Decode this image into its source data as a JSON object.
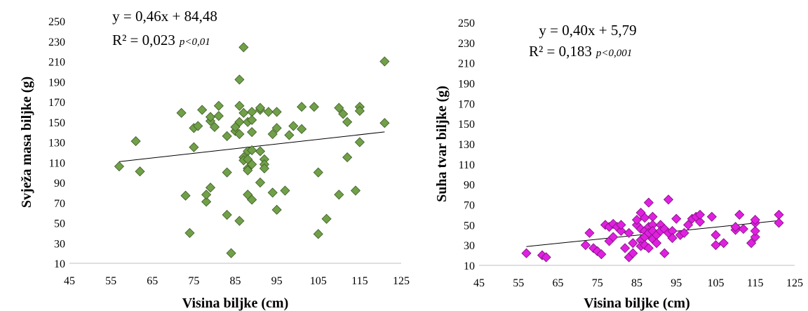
{
  "chart_data": [
    {
      "type": "scatter",
      "xlabel": "Visina biljke (cm)",
      "ylabel": "Svježa masa biljke (g)",
      "xlim": [
        45,
        125
      ],
      "ylim": [
        10,
        250
      ],
      "xticks": [
        "45",
        "55",
        "65",
        "75",
        "85",
        "95",
        "105",
        "115",
        "125"
      ],
      "yticks": [
        "10",
        "30",
        "50",
        "70",
        "90",
        "110",
        "130",
        "150",
        "170",
        "190",
        "210",
        "230",
        "250"
      ],
      "marker_color": "#70a048",
      "marker_stroke": "#3e5a26",
      "equation": "y = 0,46x + 84,48",
      "r2": "R² = 0,023",
      "p_value": "p<0,01",
      "trendline": {
        "slope": 0.46,
        "intercept": 84.48,
        "x_start": 57,
        "x_end": 121
      },
      "grid": false,
      "points": [
        {
          "x": 57,
          "y": 106
        },
        {
          "x": 61,
          "y": 131
        },
        {
          "x": 62,
          "y": 101
        },
        {
          "x": 72,
          "y": 159
        },
        {
          "x": 73,
          "y": 77
        },
        {
          "x": 74,
          "y": 40
        },
        {
          "x": 75,
          "y": 125
        },
        {
          "x": 75,
          "y": 144
        },
        {
          "x": 76,
          "y": 146
        },
        {
          "x": 77,
          "y": 162
        },
        {
          "x": 78,
          "y": 71
        },
        {
          "x": 78,
          "y": 78
        },
        {
          "x": 79,
          "y": 85
        },
        {
          "x": 79,
          "y": 151
        },
        {
          "x": 79,
          "y": 155
        },
        {
          "x": 80,
          "y": 145
        },
        {
          "x": 81,
          "y": 166
        },
        {
          "x": 81,
          "y": 156
        },
        {
          "x": 83,
          "y": 136
        },
        {
          "x": 83,
          "y": 100
        },
        {
          "x": 83,
          "y": 58
        },
        {
          "x": 84,
          "y": 20
        },
        {
          "x": 85,
          "y": 141
        },
        {
          "x": 85,
          "y": 145
        },
        {
          "x": 86,
          "y": 192
        },
        {
          "x": 86,
          "y": 166
        },
        {
          "x": 86,
          "y": 150
        },
        {
          "x": 86,
          "y": 138
        },
        {
          "x": 86,
          "y": 52
        },
        {
          "x": 87,
          "y": 224
        },
        {
          "x": 87,
          "y": 159
        },
        {
          "x": 87,
          "y": 115
        },
        {
          "x": 87,
          "y": 112
        },
        {
          "x": 88,
          "y": 121
        },
        {
          "x": 88,
          "y": 113
        },
        {
          "x": 88,
          "y": 104
        },
        {
          "x": 88,
          "y": 102
        },
        {
          "x": 88,
          "y": 78
        },
        {
          "x": 88,
          "y": 150
        },
        {
          "x": 89,
          "y": 160
        },
        {
          "x": 89,
          "y": 152
        },
        {
          "x": 89,
          "y": 140
        },
        {
          "x": 89,
          "y": 122
        },
        {
          "x": 89,
          "y": 73
        },
        {
          "x": 89,
          "y": 108
        },
        {
          "x": 91,
          "y": 162
        },
        {
          "x": 91,
          "y": 164
        },
        {
          "x": 91,
          "y": 121
        },
        {
          "x": 91,
          "y": 90
        },
        {
          "x": 92,
          "y": 113
        },
        {
          "x": 92,
          "y": 108
        },
        {
          "x": 92,
          "y": 104
        },
        {
          "x": 93,
          "y": 160
        },
        {
          "x": 94,
          "y": 80
        },
        {
          "x": 94,
          "y": 138
        },
        {
          "x": 95,
          "y": 160
        },
        {
          "x": 95,
          "y": 144
        },
        {
          "x": 95,
          "y": 63
        },
        {
          "x": 97,
          "y": 82
        },
        {
          "x": 98,
          "y": 137
        },
        {
          "x": 99,
          "y": 146
        },
        {
          "x": 101,
          "y": 143
        },
        {
          "x": 101,
          "y": 165
        },
        {
          "x": 104,
          "y": 165
        },
        {
          "x": 105,
          "y": 100
        },
        {
          "x": 105,
          "y": 39
        },
        {
          "x": 107,
          "y": 54
        },
        {
          "x": 110,
          "y": 78
        },
        {
          "x": 110,
          "y": 164
        },
        {
          "x": 111,
          "y": 158
        },
        {
          "x": 112,
          "y": 150
        },
        {
          "x": 112,
          "y": 115
        },
        {
          "x": 114,
          "y": 82
        },
        {
          "x": 115,
          "y": 165
        },
        {
          "x": 115,
          "y": 161
        },
        {
          "x": 115,
          "y": 130
        },
        {
          "x": 121,
          "y": 210
        },
        {
          "x": 121,
          "y": 149
        }
      ]
    },
    {
      "type": "scatter",
      "xlabel": "Visina biljke (cm)",
      "ylabel": "Suha tvar biljke (g)",
      "xlim": [
        45,
        125
      ],
      "ylim": [
        10,
        250
      ],
      "xticks": [
        "45",
        "55",
        "65",
        "75",
        "85",
        "95",
        "105",
        "115",
        "125"
      ],
      "yticks": [
        "10",
        "30",
        "50",
        "70",
        "90",
        "110",
        "130",
        "150",
        "170",
        "190",
        "210",
        "230",
        "250"
      ],
      "marker_color": "#e020e0",
      "marker_stroke": "#7a107a",
      "equation": "y = 0,40x + 5,79",
      "r2": "R² = 0,183",
      "p_value": "p<0,001",
      "trendline": {
        "slope": 0.4,
        "intercept": 5.79,
        "x_start": 57,
        "x_end": 121
      },
      "grid": false,
      "points": [
        {
          "x": 57,
          "y": 22
        },
        {
          "x": 61,
          "y": 20
        },
        {
          "x": 62,
          "y": 18
        },
        {
          "x": 72,
          "y": 30
        },
        {
          "x": 73,
          "y": 42
        },
        {
          "x": 74,
          "y": 27
        },
        {
          "x": 75,
          "y": 24
        },
        {
          "x": 76,
          "y": 21
        },
        {
          "x": 77,
          "y": 50
        },
        {
          "x": 78,
          "y": 34
        },
        {
          "x": 78,
          "y": 48
        },
        {
          "x": 79,
          "y": 38
        },
        {
          "x": 79,
          "y": 51
        },
        {
          "x": 80,
          "y": 48
        },
        {
          "x": 81,
          "y": 44
        },
        {
          "x": 81,
          "y": 50
        },
        {
          "x": 82,
          "y": 27
        },
        {
          "x": 83,
          "y": 42
        },
        {
          "x": 83,
          "y": 18
        },
        {
          "x": 84,
          "y": 22
        },
        {
          "x": 84,
          "y": 32
        },
        {
          "x": 85,
          "y": 50
        },
        {
          "x": 85,
          "y": 55
        },
        {
          "x": 86,
          "y": 62
        },
        {
          "x": 86,
          "y": 46
        },
        {
          "x": 86,
          "y": 35
        },
        {
          "x": 86,
          "y": 29
        },
        {
          "x": 87,
          "y": 57
        },
        {
          "x": 87,
          "y": 44
        },
        {
          "x": 87,
          "y": 38
        },
        {
          "x": 87,
          "y": 30
        },
        {
          "x": 88,
          "y": 72
        },
        {
          "x": 88,
          "y": 48
        },
        {
          "x": 88,
          "y": 42
        },
        {
          "x": 88,
          "y": 27
        },
        {
          "x": 89,
          "y": 58
        },
        {
          "x": 89,
          "y": 50
        },
        {
          "x": 89,
          "y": 44
        },
        {
          "x": 89,
          "y": 36
        },
        {
          "x": 90,
          "y": 40
        },
        {
          "x": 90,
          "y": 32
        },
        {
          "x": 91,
          "y": 50
        },
        {
          "x": 91,
          "y": 44
        },
        {
          "x": 92,
          "y": 46
        },
        {
          "x": 92,
          "y": 22
        },
        {
          "x": 93,
          "y": 75
        },
        {
          "x": 93,
          "y": 42
        },
        {
          "x": 94,
          "y": 44
        },
        {
          "x": 94,
          "y": 37
        },
        {
          "x": 95,
          "y": 56
        },
        {
          "x": 96,
          "y": 40
        },
        {
          "x": 97,
          "y": 42
        },
        {
          "x": 98,
          "y": 50
        },
        {
          "x": 99,
          "y": 56
        },
        {
          "x": 100,
          "y": 58
        },
        {
          "x": 101,
          "y": 53
        },
        {
          "x": 101,
          "y": 60
        },
        {
          "x": 104,
          "y": 58
        },
        {
          "x": 105,
          "y": 40
        },
        {
          "x": 105,
          "y": 30
        },
        {
          "x": 107,
          "y": 32
        },
        {
          "x": 110,
          "y": 45
        },
        {
          "x": 110,
          "y": 48
        },
        {
          "x": 111,
          "y": 60
        },
        {
          "x": 112,
          "y": 46
        },
        {
          "x": 114,
          "y": 32
        },
        {
          "x": 115,
          "y": 38
        },
        {
          "x": 115,
          "y": 44
        },
        {
          "x": 115,
          "y": 52
        },
        {
          "x": 115,
          "y": 55
        },
        {
          "x": 121,
          "y": 60
        },
        {
          "x": 121,
          "y": 52
        }
      ]
    }
  ]
}
